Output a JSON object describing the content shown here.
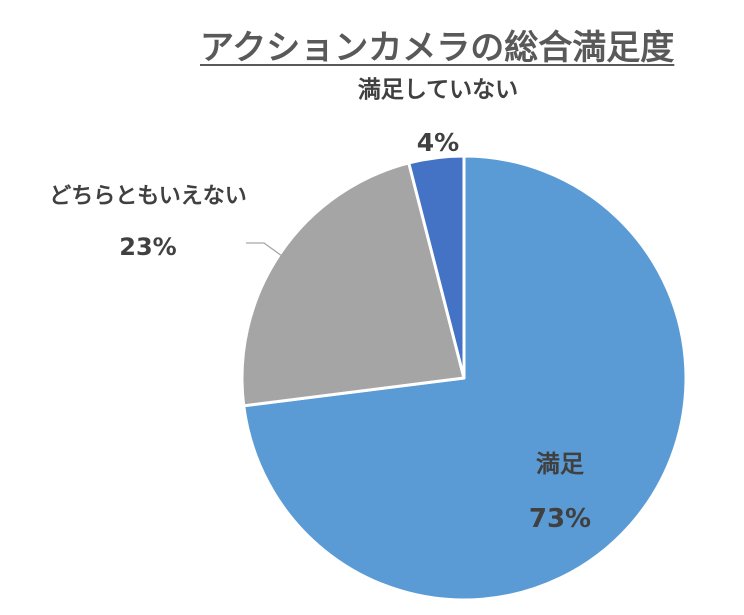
{
  "chart_data": {
    "type": "pie",
    "title": "アクションカメラの総合満足度",
    "series": [
      {
        "categories": [
          "満足",
          "どちらともいえない",
          "満足していない"
        ],
        "values": [
          73,
          23,
          4
        ],
        "value_labels": [
          "73%",
          "23%",
          "4%"
        ],
        "colors": [
          "#5B9BD5",
          "#A5A5A5",
          "#4472C4"
        ]
      }
    ],
    "legend": "none",
    "start_angle_deg": 0,
    "direction": "clockwise"
  }
}
